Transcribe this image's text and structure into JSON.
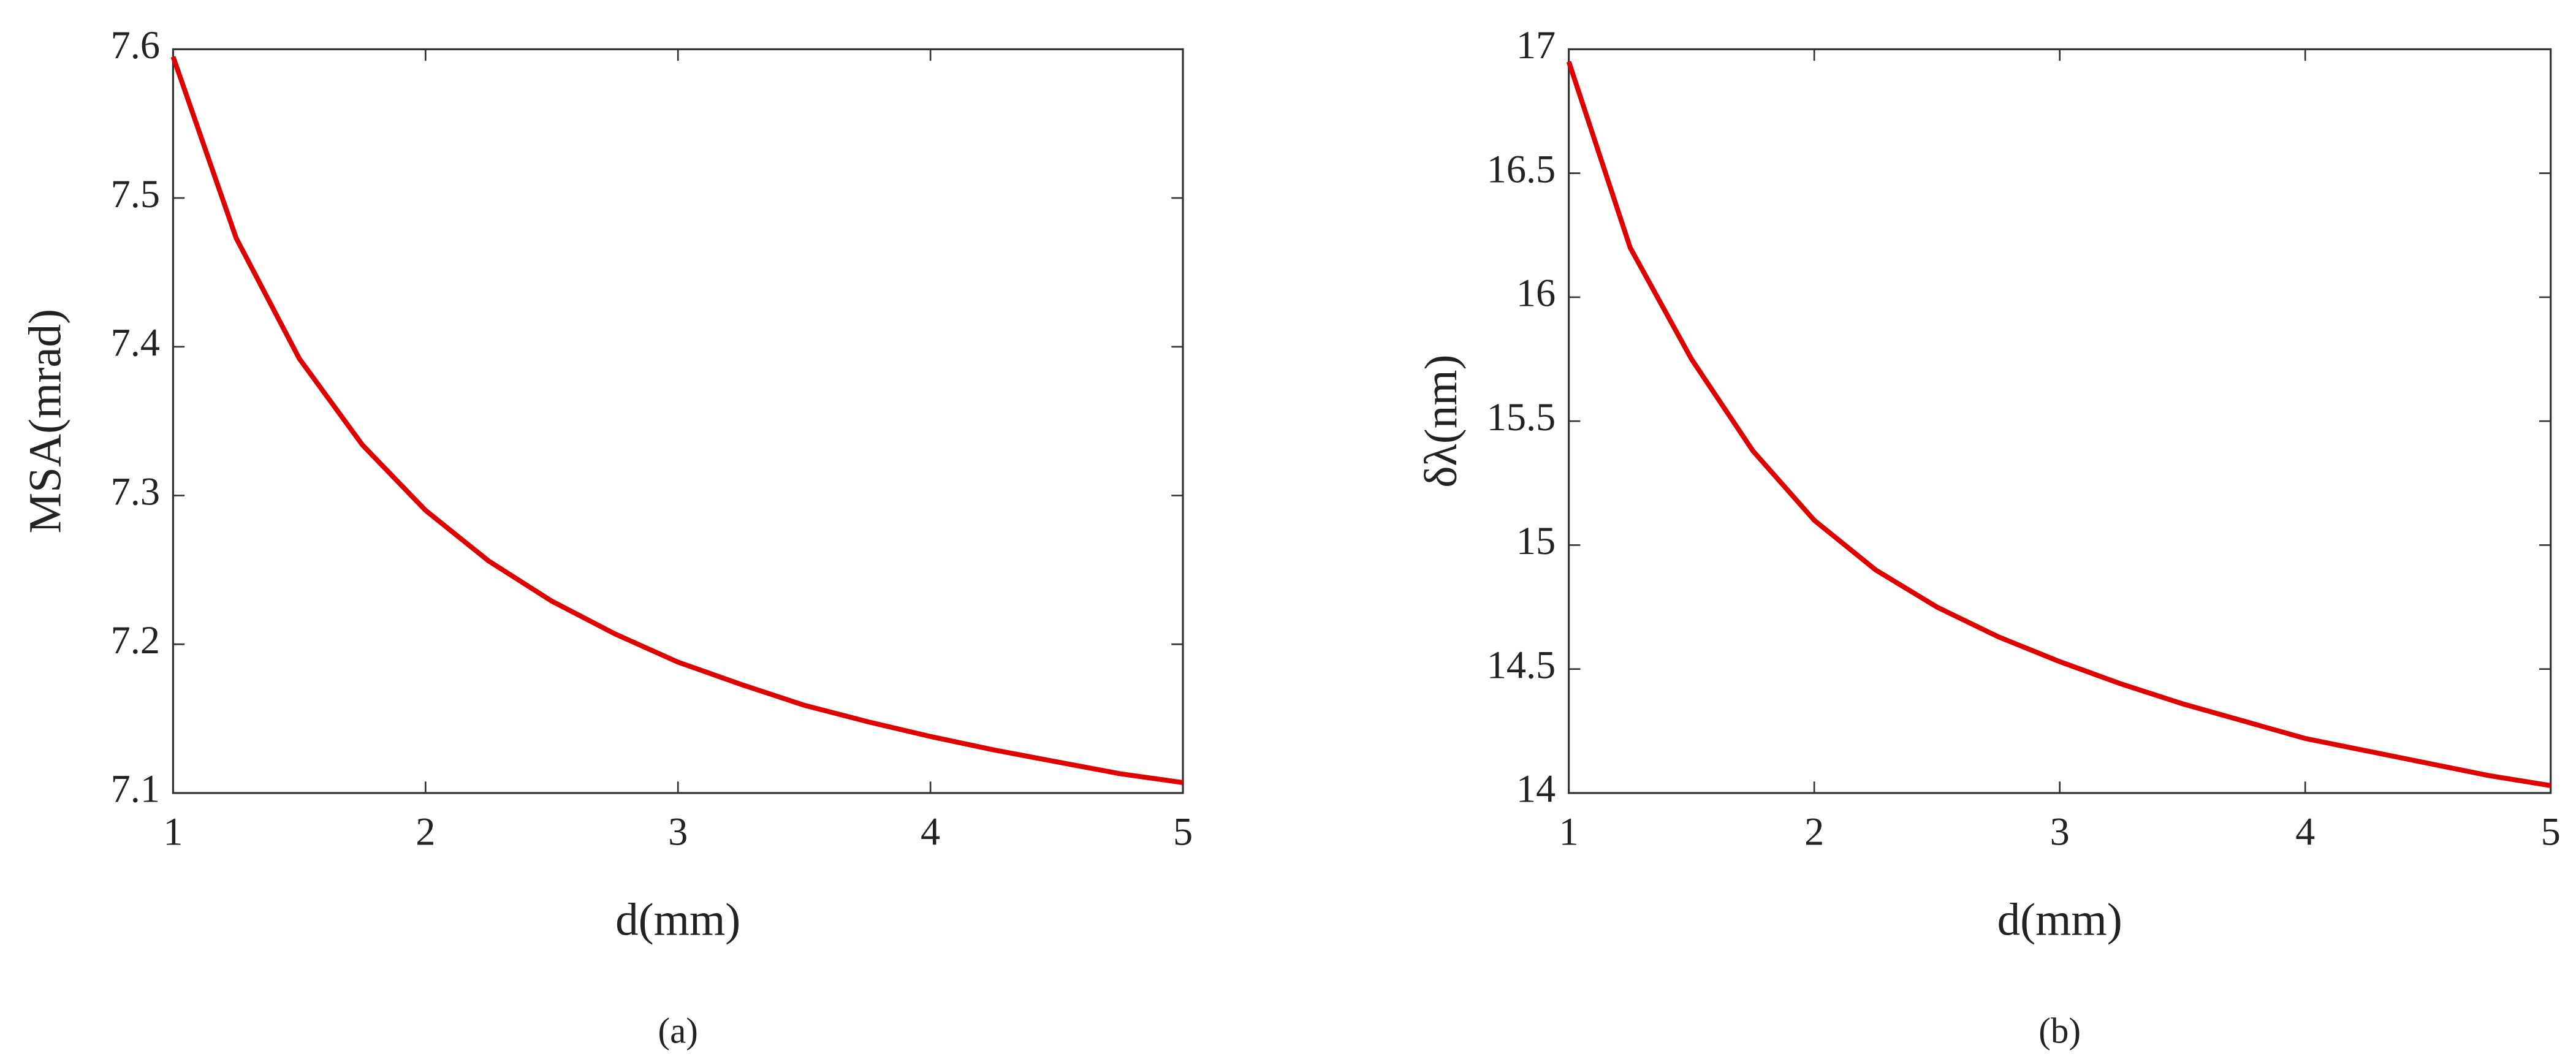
{
  "chart_data": [
    {
      "type": "line",
      "caption": "(a)",
      "xlabel": "d(mm)",
      "ylabel": "MSA(mrad)",
      "x": [
        1,
        1.25,
        1.5,
        1.75,
        2,
        2.25,
        2.5,
        2.75,
        3,
        3.25,
        3.5,
        3.75,
        4,
        4.25,
        4.5,
        4.75,
        5
      ],
      "series": [
        {
          "color": "#e00000",
          "values": [
            7.595,
            7.473,
            7.392,
            7.334,
            7.29,
            7.256,
            7.229,
            7.207,
            7.188,
            7.173,
            7.159,
            7.148,
            7.138,
            7.129,
            7.121,
            7.113,
            7.107
          ]
        }
      ],
      "xlim": [
        1,
        5
      ],
      "xticks": [
        1,
        2,
        3,
        4,
        5
      ],
      "ylim": [
        7.1,
        7.6
      ],
      "yticks": [
        7.1,
        7.2,
        7.3,
        7.4,
        7.5,
        7.6
      ],
      "grid": false
    },
    {
      "type": "line",
      "caption": "(b)",
      "xlabel": "d(mm)",
      "ylabel": "δλ(nm)",
      "x": [
        1,
        1.25,
        1.5,
        1.75,
        2,
        2.25,
        2.5,
        2.75,
        3,
        3.25,
        3.5,
        3.75,
        4,
        4.25,
        4.5,
        4.75,
        5
      ],
      "series": [
        {
          "color": "#e00000",
          "values": [
            16.95,
            16.2,
            15.75,
            15.38,
            15.1,
            14.9,
            14.75,
            14.63,
            14.53,
            14.44,
            14.36,
            14.29,
            14.22,
            14.17,
            14.12,
            14.07,
            14.03
          ]
        }
      ],
      "xlim": [
        1,
        5
      ],
      "xticks": [
        1,
        2,
        3,
        4,
        5
      ],
      "ylim": [
        14,
        17
      ],
      "yticks": [
        14,
        14.5,
        15,
        15.5,
        16,
        16.5,
        17
      ],
      "grid": false
    }
  ]
}
